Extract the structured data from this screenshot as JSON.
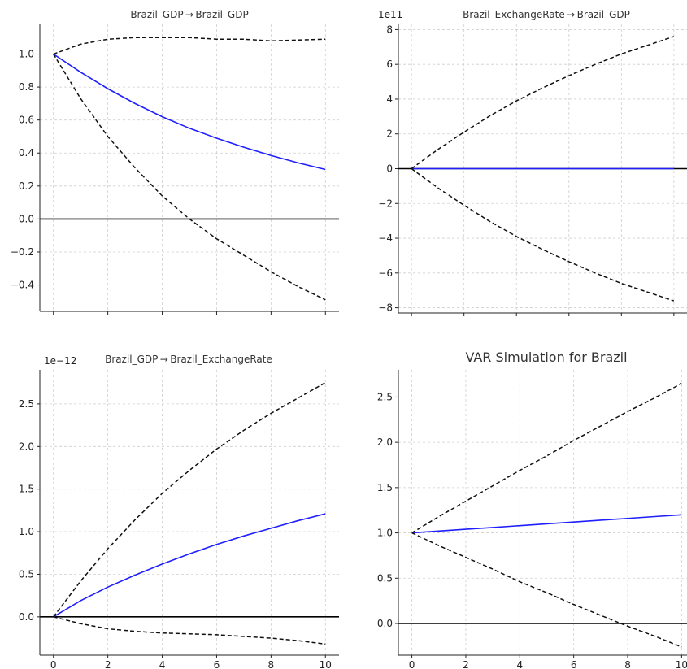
{
  "chart_data": [
    {
      "type": "line",
      "title": "Brazil_GDP → Brazil_GDP",
      "offset_label": "",
      "x": [
        0,
        1,
        2,
        3,
        4,
        5,
        6,
        7,
        8,
        9,
        10
      ],
      "x_ticks": [
        0,
        2,
        4,
        6,
        8,
        10
      ],
      "xlim": [
        -0.5,
        10.5
      ],
      "ylim": [
        -0.56,
        1.18
      ],
      "y_ticks": [
        1.0,
        0.8,
        0.6,
        0.4,
        0.2,
        0.0,
        -0.2,
        -0.4
      ],
      "y_tick_labels": [
        "1.0",
        "0.8",
        "0.6",
        "0.4",
        "0.2",
        "0.0",
        "−0.2",
        "−0.4"
      ],
      "grid": true,
      "series": [
        {
          "role": "response",
          "color": "#1f1fff",
          "values": [
            1.0,
            0.89,
            0.79,
            0.7,
            0.62,
            0.55,
            0.49,
            0.435,
            0.385,
            0.34,
            0.3
          ]
        },
        {
          "role": "upper",
          "color": "#111111",
          "values": [
            1.0,
            1.06,
            1.09,
            1.1,
            1.1,
            1.1,
            1.09,
            1.09,
            1.08,
            1.085,
            1.09
          ]
        },
        {
          "role": "lower",
          "color": "#111111",
          "values": [
            1.0,
            0.73,
            0.5,
            0.31,
            0.14,
            0.0,
            -0.12,
            -0.22,
            -0.32,
            -0.41,
            -0.49
          ]
        }
      ],
      "zero_line": 0
    },
    {
      "type": "line",
      "title": "Brazil_ExchangeRate → Brazil_GDP",
      "offset_label": "1e11",
      "x": [
        0,
        1,
        2,
        3,
        4,
        5,
        6,
        7,
        8,
        9,
        10
      ],
      "x_ticks": [
        0,
        2,
        4,
        6,
        8,
        10
      ],
      "xlim": [
        -0.5,
        10.5
      ],
      "ylim": [
        -8.3,
        8.3
      ],
      "y_ticks": [
        8,
        6,
        4,
        2,
        0,
        -2,
        -4,
        -6,
        -8
      ],
      "y_tick_labels": [
        "8",
        "6",
        "4",
        "2",
        "0",
        "−2",
        "−4",
        "−6",
        "−8"
      ],
      "grid": true,
      "series": [
        {
          "role": "response",
          "color": "#1f1fff",
          "values": [
            0,
            0,
            0,
            0,
            0,
            0,
            0,
            0,
            0,
            0,
            0
          ]
        },
        {
          "role": "upper",
          "color": "#111111",
          "values": [
            0,
            1.1,
            2.1,
            3.05,
            3.9,
            4.65,
            5.35,
            6.0,
            6.6,
            7.1,
            7.6
          ]
        },
        {
          "role": "lower",
          "color": "#111111",
          "values": [
            0,
            -1.1,
            -2.1,
            -3.05,
            -3.9,
            -4.65,
            -5.35,
            -6.0,
            -6.6,
            -7.1,
            -7.6
          ]
        }
      ],
      "zero_line": 0
    },
    {
      "type": "line",
      "title": "Brazil_GDP → Brazil_ExchangeRate",
      "offset_label": "1e−12",
      "x": [
        0,
        1,
        2,
        3,
        4,
        5,
        6,
        7,
        8,
        9,
        10
      ],
      "x_ticks": [
        0,
        2,
        4,
        6,
        8,
        10
      ],
      "x_tick_labels": [
        "0",
        "2",
        "4",
        "6",
        "8",
        "10"
      ],
      "xlim": [
        -0.5,
        10.5
      ],
      "ylim": [
        -0.45,
        2.9
      ],
      "y_ticks": [
        2.5,
        2.0,
        1.5,
        1.0,
        0.5,
        0.0
      ],
      "y_tick_labels": [
        "2.5",
        "2.0",
        "1.5",
        "1.0",
        "0.5",
        "0.0"
      ],
      "grid": true,
      "series": [
        {
          "role": "response",
          "color": "#1f1fff",
          "values": [
            0,
            0.19,
            0.35,
            0.49,
            0.62,
            0.74,
            0.85,
            0.95,
            1.04,
            1.13,
            1.21
          ]
        },
        {
          "role": "upper",
          "color": "#111111",
          "values": [
            0,
            0.42,
            0.8,
            1.14,
            1.45,
            1.72,
            1.97,
            2.19,
            2.39,
            2.57,
            2.75
          ]
        },
        {
          "role": "lower",
          "color": "#111111",
          "values": [
            0,
            -0.08,
            -0.14,
            -0.17,
            -0.19,
            -0.2,
            -0.21,
            -0.23,
            -0.25,
            -0.28,
            -0.32
          ]
        }
      ],
      "zero_line": 0
    },
    {
      "type": "line",
      "title": "VAR Simulation for Brazil",
      "offset_label": "",
      "x": [
        0,
        1,
        2,
        3,
        4,
        5,
        6,
        7,
        8,
        9,
        10
      ],
      "x_ticks": [
        0,
        2,
        4,
        6,
        8,
        10
      ],
      "x_tick_labels": [
        "0",
        "2",
        "4",
        "6",
        "8",
        "10"
      ],
      "xlim": [
        -0.5,
        10.2
      ],
      "ylim": [
        -0.35,
        2.8
      ],
      "y_ticks": [
        2.5,
        2.0,
        1.5,
        1.0,
        0.5,
        0.0
      ],
      "y_tick_labels": [
        "2.5",
        "2.0",
        "1.5",
        "1.0",
        "0.5",
        "0.0"
      ],
      "grid": true,
      "series": [
        {
          "role": "response",
          "color": "#1f1fff",
          "values": [
            1.0,
            1.02,
            1.04,
            1.06,
            1.08,
            1.1,
            1.12,
            1.14,
            1.16,
            1.18,
            1.2
          ]
        },
        {
          "role": "upper",
          "color": "#111111",
          "values": [
            1.0,
            1.18,
            1.35,
            1.52,
            1.69,
            1.85,
            2.02,
            2.18,
            2.34,
            2.49,
            2.65
          ]
        },
        {
          "role": "lower",
          "color": "#111111",
          "values": [
            1.0,
            0.86,
            0.73,
            0.6,
            0.46,
            0.34,
            0.21,
            0.09,
            -0.03,
            -0.14,
            -0.26
          ]
        }
      ],
      "zero_line": 0
    }
  ]
}
